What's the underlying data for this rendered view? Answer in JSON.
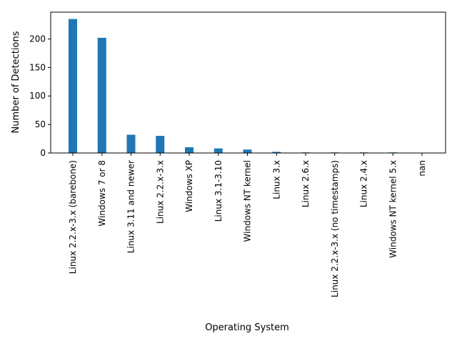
{
  "chart_data": {
    "type": "bar",
    "title": "",
    "xlabel": "Operating System",
    "ylabel": "Number of Detections",
    "categories": [
      "Linux 2.2.x-3.x (barebone)",
      "Windows 7 or 8",
      "Linux 3.11 and newer",
      "Linux 2.2.x-3.x",
      "Windows XP",
      "Linux 3.1-3.10",
      "Windows NT kernel",
      "Linux 3.x",
      "Linux 2.6.x",
      "Linux 2.2.x-3.x (no timestamps)",
      "Linux 2.4.x",
      "Windows NT kernel 5.x",
      "nan"
    ],
    "values": [
      235,
      202,
      32,
      30,
      10,
      8,
      6,
      2,
      1,
      1,
      1,
      1,
      0
    ],
    "ylim": [
      0,
      247
    ],
    "yticks": [
      0,
      50,
      100,
      150,
      200
    ],
    "grid": false,
    "bar_color": "#1f77b4"
  }
}
